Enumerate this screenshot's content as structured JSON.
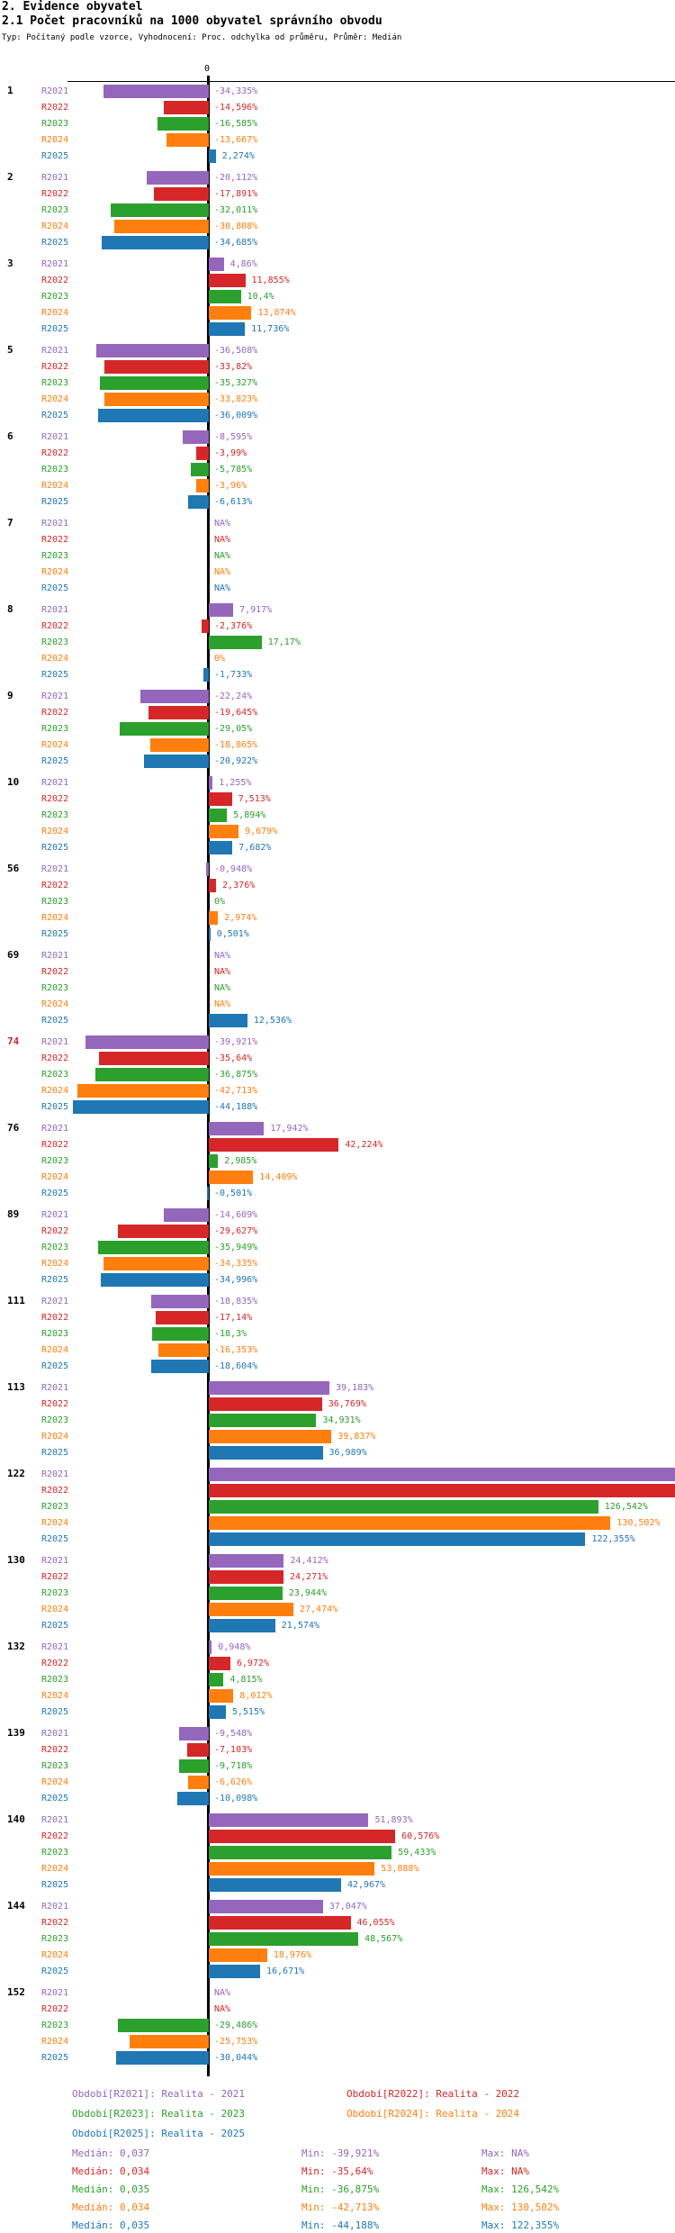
{
  "header": {
    "title1": "2. Evidence obyvatel",
    "title2": "2.1 Počet pracovníků na 1000 obyvatel správního obvodu",
    "subtitle": "Typ: Počítaný podle vzorce, Vyhodnocení: Proc. odchylka od průměru, Průměr: Medián"
  },
  "chart_data": {
    "type": "bar",
    "orientation": "horizontal",
    "title": "2.1 Počet pracovníků na 1000 obyvatel správního obvodu",
    "xlabel": "",
    "ylabel": "",
    "value_unit": "%",
    "axis": {
      "zero_label": "0",
      "xlim": [
        -68,
        151
      ],
      "grid": false
    },
    "legend_position": "bottom",
    "series": [
      {
        "name": "R2021",
        "color": "#9467bd"
      },
      {
        "name": "R2022",
        "color": "#d62728"
      },
      {
        "name": "R2023",
        "color": "#2ca02c"
      },
      {
        "name": "R2024",
        "color": "#ff7f0e"
      },
      {
        "name": "R2025",
        "color": "#1f77b4"
      }
    ],
    "groups": [
      {
        "id": "1",
        "values": [
          -34.335,
          -14.596,
          -16.585,
          -13.667,
          2.274
        ],
        "labels": [
          "-34,335%",
          "-14,596%",
          "-16,585%",
          "-13,667%",
          "2,274%"
        ]
      },
      {
        "id": "2",
        "values": [
          -20.112,
          -17.891,
          -32.011,
          -30.808,
          -34.685
        ],
        "labels": [
          "-20,112%",
          "-17,891%",
          "-32,011%",
          "-30,808%",
          "-34,685%"
        ]
      },
      {
        "id": "3",
        "values": [
          4.86,
          11.855,
          10.4,
          13.874,
          11.736
        ],
        "labels": [
          "4,86%",
          "11,855%",
          "10,4%",
          "13,874%",
          "11,736%"
        ]
      },
      {
        "id": "5",
        "values": [
          -36.508,
          -33.82,
          -35.327,
          -33.823,
          -36.009
        ],
        "labels": [
          "-36,508%",
          "-33,82%",
          "-35,327%",
          "-33,823%",
          "-36,009%"
        ]
      },
      {
        "id": "6",
        "values": [
          -8.595,
          -3.99,
          -5.785,
          -3.96,
          -6.613
        ],
        "labels": [
          "-8,595%",
          "-3,99%",
          "-5,785%",
          "-3,96%",
          "-6,613%"
        ]
      },
      {
        "id": "7",
        "values": [
          null,
          null,
          null,
          null,
          null
        ],
        "labels": [
          "NA%",
          "NA%",
          "NA%",
          "NA%",
          "NA%"
        ]
      },
      {
        "id": "8",
        "values": [
          7.917,
          -2.376,
          17.17,
          0,
          -1.733
        ],
        "labels": [
          "7,917%",
          "-2,376%",
          "17,17%",
          "0%",
          "-1,733%"
        ]
      },
      {
        "id": "9",
        "values": [
          -22.24,
          -19.645,
          -29.05,
          -18.865,
          -20.922
        ],
        "labels": [
          "-22,24%",
          "-19,645%",
          "-29,05%",
          "-18,865%",
          "-20,922%"
        ]
      },
      {
        "id": "10",
        "values": [
          1.255,
          7.513,
          5.894,
          9.679,
          7.682
        ],
        "labels": [
          "1,255%",
          "7,513%",
          "5,894%",
          "9,679%",
          "7,682%"
        ]
      },
      {
        "id": "56",
        "values": [
          -0.948,
          2.376,
          0,
          2.974,
          0.501
        ],
        "labels": [
          "-0,948%",
          "2,376%",
          "0%",
          "2,974%",
          "0,501%"
        ]
      },
      {
        "id": "69",
        "values": [
          null,
          null,
          null,
          null,
          12.536
        ],
        "labels": [
          "NA%",
          "NA%",
          "NA%",
          "NA%",
          "12,536%"
        ]
      },
      {
        "id": "74",
        "id_color": "#d62728",
        "values": [
          -39.921,
          -35.64,
          -36.875,
          -42.713,
          -44.188
        ],
        "labels": [
          "-39,921%",
          "-35,64%",
          "-36,875%",
          "-42,713%",
          "-44,188%"
        ]
      },
      {
        "id": "76",
        "values": [
          17.942,
          42.224,
          2.985,
          14.409,
          -0.501
        ],
        "labels": [
          "17,942%",
          "42,224%",
          "2,985%",
          "14,409%",
          "-0,501%"
        ]
      },
      {
        "id": "89",
        "values": [
          -14.609,
          -29.627,
          -35.949,
          -34.335,
          -34.996
        ],
        "labels": [
          "-14,609%",
          "-29,627%",
          "-35,949%",
          "-34,335%",
          "-34,996%"
        ]
      },
      {
        "id": "111",
        "values": [
          -18.835,
          -17.14,
          -18.3,
          -16.353,
          -18.604
        ],
        "labels": [
          "-18,835%",
          "-17,14%",
          "-18,3%",
          "-16,353%",
          "-18,604%"
        ]
      },
      {
        "id": "113",
        "values": [
          39.183,
          36.769,
          34.931,
          39.837,
          36.989
        ],
        "labels": [
          "39,183%",
          "36,769%",
          "34,931%",
          "39,837%",
          "36,989%"
        ]
      },
      {
        "id": "122",
        "values": [
          null,
          null,
          126.542,
          130.502,
          122.355
        ],
        "labels": [
          "",
          "",
          "126,542%",
          "130,502%",
          "122,355%"
        ],
        "clipped": [
          true,
          true,
          false,
          false,
          false
        ]
      },
      {
        "id": "130",
        "values": [
          24.412,
          24.271,
          23.944,
          27.474,
          21.574
        ],
        "labels": [
          "24,412%",
          "24,271%",
          "23,944%",
          "27,474%",
          "21,574%"
        ]
      },
      {
        "id": "132",
        "values": [
          0.948,
          6.972,
          4.815,
          8.012,
          5.515
        ],
        "labels": [
          "0,948%",
          "6,972%",
          "4,815%",
          "8,012%",
          "5,515%"
        ]
      },
      {
        "id": "139",
        "values": [
          -9.548,
          -7.103,
          -9.718,
          -6.626,
          -10.098
        ],
        "labels": [
          "-9,548%",
          "-7,103%",
          "-9,718%",
          "-6,626%",
          "-10,098%"
        ]
      },
      {
        "id": "140",
        "values": [
          51.893,
          60.576,
          59.433,
          53.888,
          42.967
        ],
        "labels": [
          "51,893%",
          "60,576%",
          "59,433%",
          "53,888%",
          "42,967%"
        ]
      },
      {
        "id": "144",
        "values": [
          37.047,
          46.055,
          48.567,
          18.976,
          16.671
        ],
        "labels": [
          "37,047%",
          "46,055%",
          "48,567%",
          "18,976%",
          "16,671%"
        ]
      },
      {
        "id": "152",
        "values": [
          null,
          null,
          -29.486,
          -25.753,
          -30.044
        ],
        "labels": [
          "NA%",
          "NA%",
          "-29,486%",
          "-25,753%",
          "-30,044%"
        ]
      }
    ]
  },
  "legend": {
    "entries": [
      {
        "text": "Období[R2021]: Realita - 2021",
        "color": "#9467bd"
      },
      {
        "text": "Období[R2022]: Realita - 2022",
        "color": "#d62728"
      },
      {
        "text": "Období[R2023]: Realita - 2023",
        "color": "#2ca02c"
      },
      {
        "text": "Období[R2024]: Realita - 2024",
        "color": "#ff7f0e"
      },
      {
        "text": "Období[R2025]: Realita - 2025",
        "color": "#1f77b4"
      }
    ]
  },
  "stats": {
    "rows": [
      {
        "median": "Medián: 0,037",
        "min": "Min: -39,921%",
        "max": "Max: NA%",
        "color": "#9467bd"
      },
      {
        "median": "Medián: 0,034",
        "min": "Min: -35,64%",
        "max": "Max: NA%",
        "color": "#d62728"
      },
      {
        "median": "Medián: 0,035",
        "min": "Min: -36,875%",
        "max": "Max: 126,542%",
        "color": "#2ca02c"
      },
      {
        "median": "Medián: 0,034",
        "min": "Min: -42,713%",
        "max": "Max: 130,502%",
        "color": "#ff7f0e"
      },
      {
        "median": "Medián: 0,035",
        "min": "Min: -44,188%",
        "max": "Max: 122,355%",
        "color": "#1f77b4"
      }
    ]
  }
}
